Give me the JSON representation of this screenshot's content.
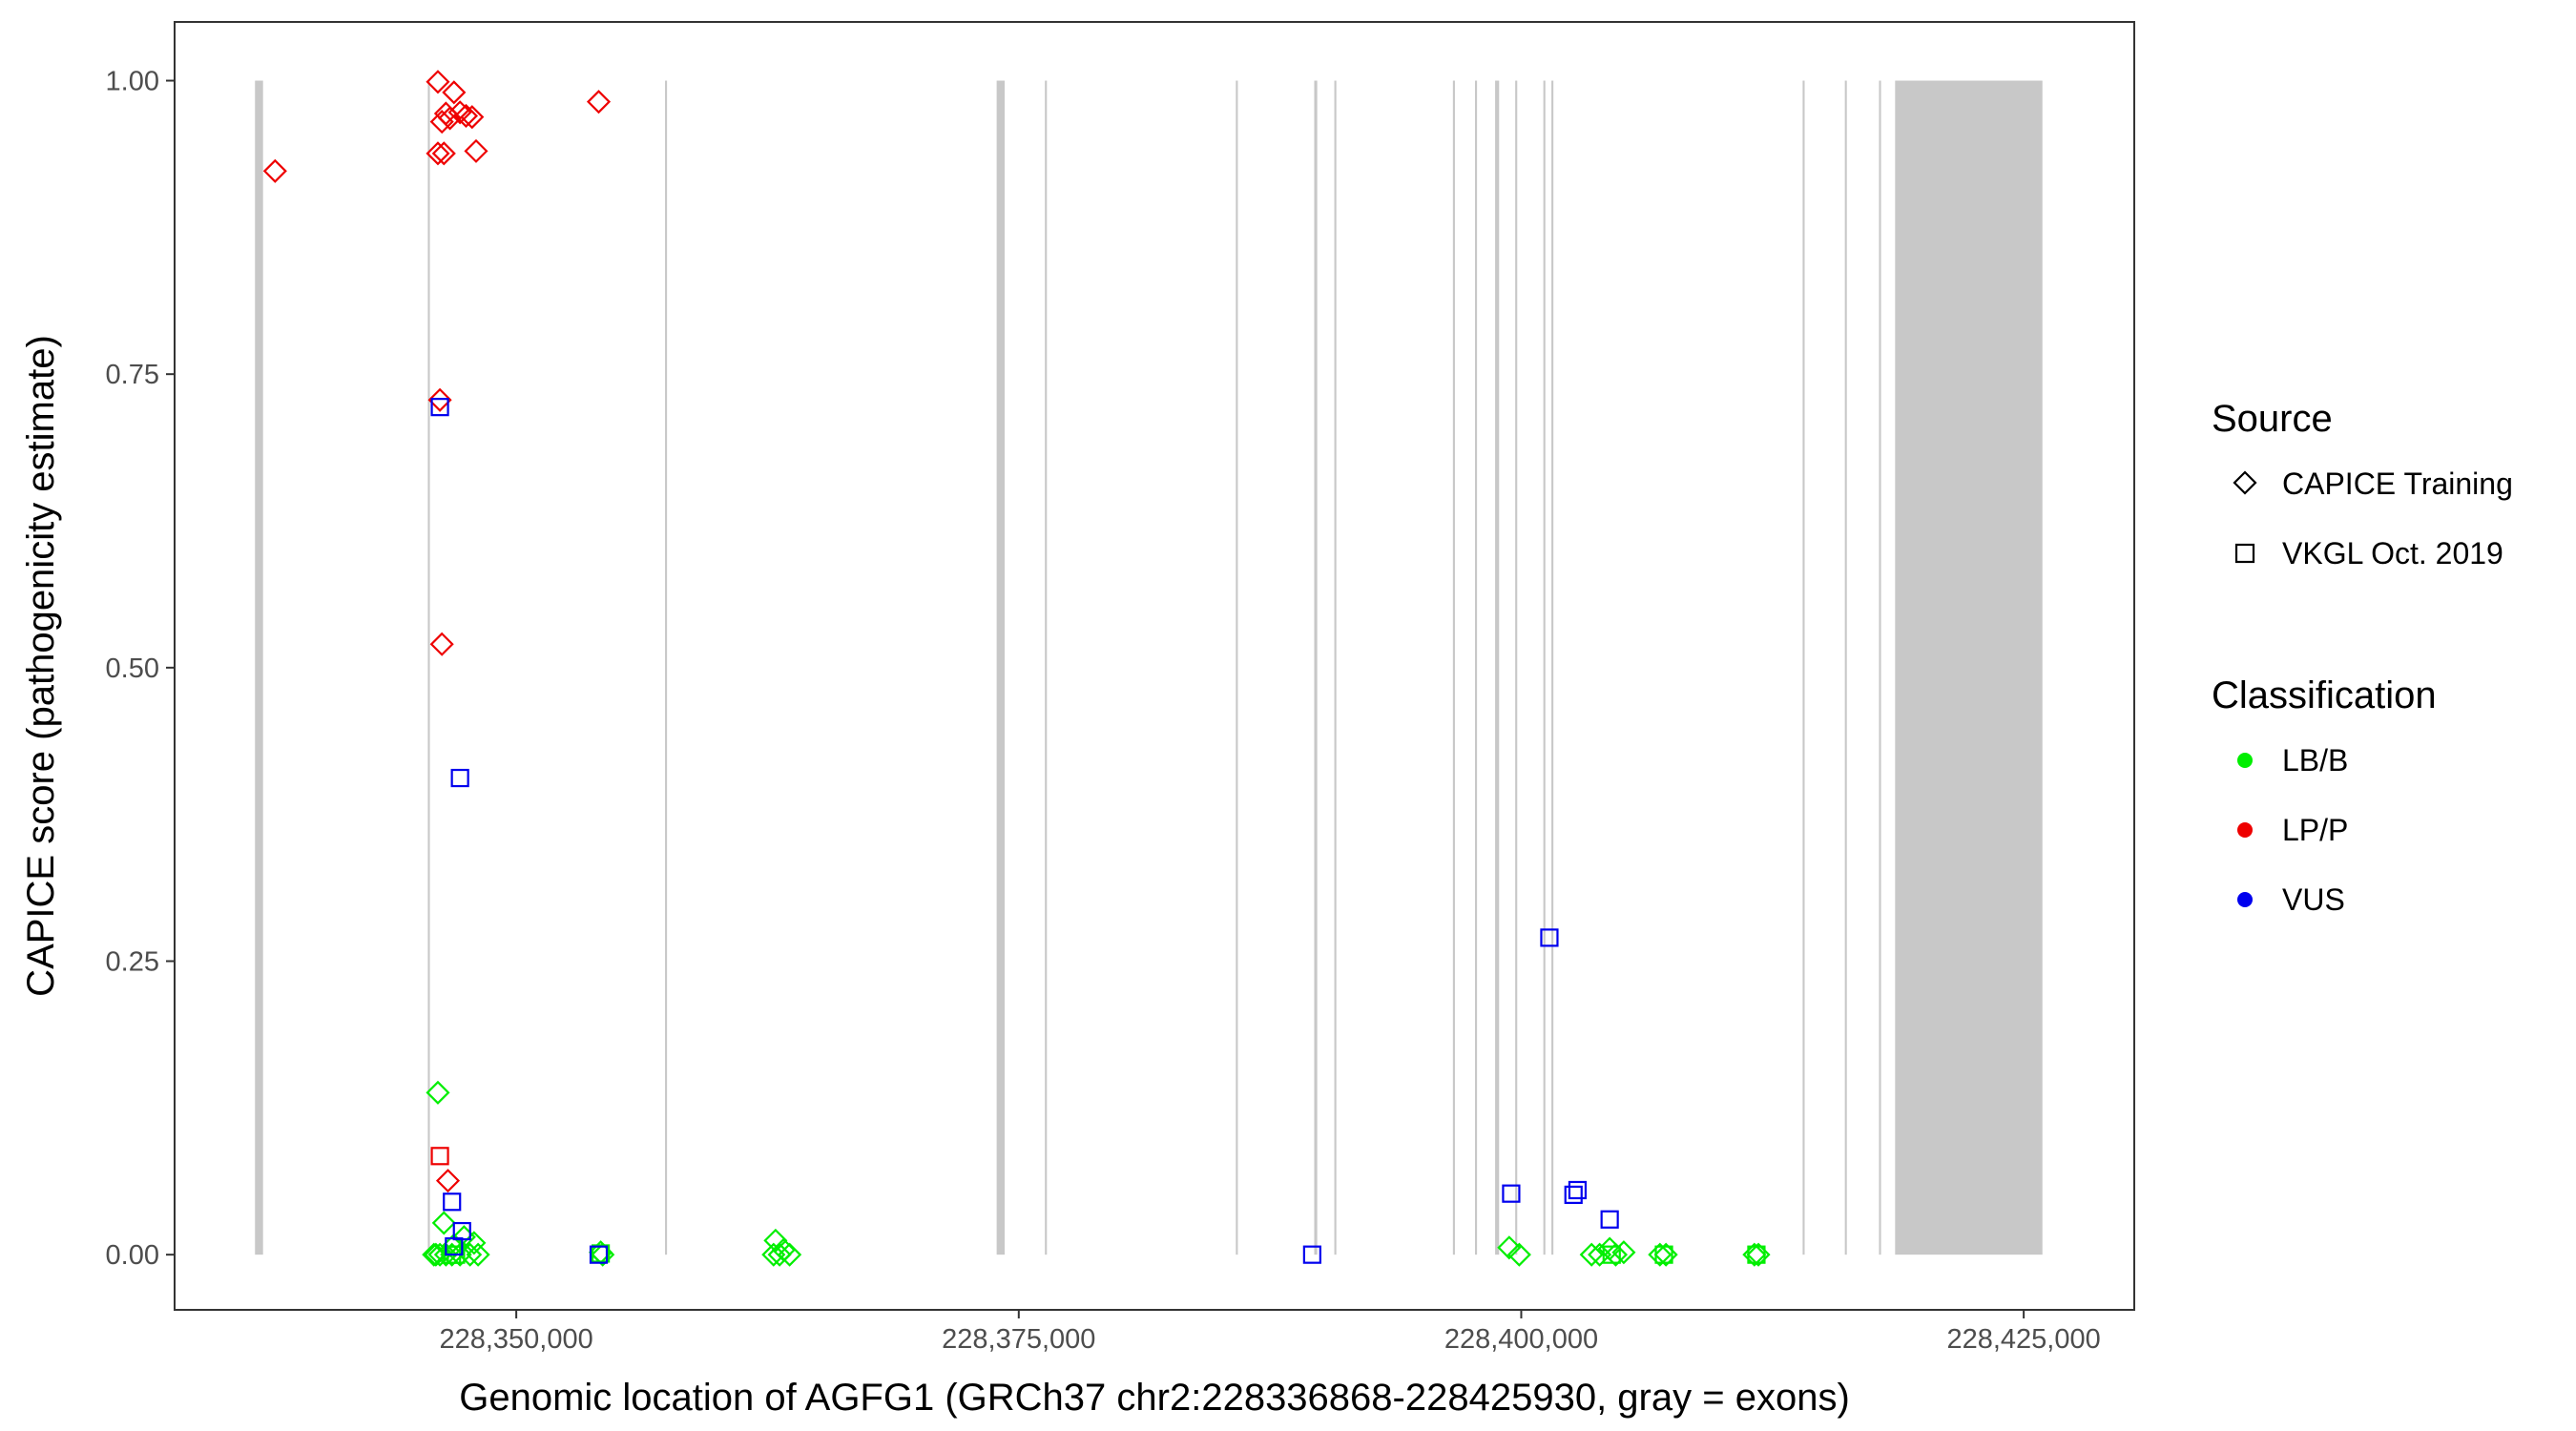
{
  "chart_data": {
    "type": "scatter",
    "title": "",
    "xlabel": "Genomic location of AGFG1 (GRCh37 chr2:228336868-228425930, gray = exons)",
    "ylabel": "CAPICE score (pathogenicity estimate)",
    "xlim": [
      228333000,
      228430500
    ],
    "ylim": [
      -0.047,
      1.05
    ],
    "x_ticks": [
      228350000,
      228375000,
      228400000,
      228425000
    ],
    "x_tick_labels": [
      "228,350,000",
      "228,375,000",
      "228,400,000",
      "228,425,000"
    ],
    "y_ticks": [
      0,
      0.25,
      0.5,
      0.75,
      1.0
    ],
    "y_tick_labels": [
      "0.00",
      "0.25",
      "0.50",
      "0.75",
      "1.00"
    ],
    "grid": false,
    "exons": [
      {
        "start": 228337000,
        "end": 228337400
      },
      {
        "start": 228345600,
        "end": 228345700
      },
      {
        "start": 228357400,
        "end": 228357500
      },
      {
        "start": 228373900,
        "end": 228374300
      },
      {
        "start": 228376300,
        "end": 228376400
      },
      {
        "start": 228385800,
        "end": 228385900
      },
      {
        "start": 228389700,
        "end": 228389850
      },
      {
        "start": 228390700,
        "end": 228390800
      },
      {
        "start": 228396600,
        "end": 228396700
      },
      {
        "start": 228397700,
        "end": 228397800
      },
      {
        "start": 228398700,
        "end": 228398900
      },
      {
        "start": 228399700,
        "end": 228399800
      },
      {
        "start": 228401100,
        "end": 228401200
      },
      {
        "start": 228401500,
        "end": 228401600
      },
      {
        "start": 228414000,
        "end": 228414100
      },
      {
        "start": 228416100,
        "end": 228416200
      },
      {
        "start": 228417800,
        "end": 228417900
      },
      {
        "start": 228418600,
        "end": 228425930
      }
    ],
    "legend": {
      "position": "right",
      "source_title": "Source",
      "source_items": [
        {
          "label": "CAPICE Training",
          "shape": "diamond"
        },
        {
          "label": "VKGL Oct. 2019",
          "shape": "square"
        }
      ],
      "class_title": "Classification",
      "class_items": [
        {
          "label": "LB/B",
          "color": "#00ee00"
        },
        {
          "label": "LP/P",
          "color": "#ee0000"
        },
        {
          "label": "VUS",
          "color": "#0000ee"
        }
      ]
    },
    "colors": {
      "LB/B": "#00ee00",
      "LP/P": "#ee0000",
      "VUS": "#0000ee",
      "exon": "#c8c8c8"
    },
    "series": [
      {
        "source": "CAPICE Training",
        "classification": "LP/P",
        "shape": "diamond",
        "x": [
          228338000,
          228346100,
          228346300,
          228346500,
          228346700,
          228346900,
          228347200,
          228347500,
          228347800,
          228346100,
          228346400,
          228348000,
          228346200,
          228346300,
          228346600,
          228354100
        ],
        "y": [
          0.923,
          0.999,
          0.965,
          0.972,
          0.968,
          0.99,
          0.973,
          0.97,
          0.969,
          0.938,
          0.938,
          0.94,
          0.728,
          0.52,
          0.063,
          0.982
        ]
      },
      {
        "source": "CAPICE Training",
        "classification": "LB/B",
        "shape": "diamond",
        "x": [
          228346100,
          228346400,
          228346900,
          228347400,
          228347900,
          228348100,
          228346000,
          228345900,
          228346200,
          228346500,
          228346800,
          228347200,
          228347700,
          228354200,
          228354300,
          228362800,
          228362900,
          228363100,
          228363300,
          228363600,
          228399400,
          228399900,
          228403500,
          228403900,
          228404400,
          228404700,
          228405100,
          228406900,
          228407200,
          228411600,
          228411800
        ],
        "y": [
          0.138,
          0.027,
          0.008,
          0.015,
          0.01,
          0.0,
          0.0,
          0.0,
          0.0,
          0.0,
          0.0,
          0.0,
          0.0,
          0.002,
          0.0,
          0.0,
          0.012,
          0.0,
          0.004,
          0.0,
          0.006,
          0.0,
          0.0,
          0.0,
          0.005,
          0.0,
          0.002,
          0.0,
          0.0,
          0.0,
          0.0
        ]
      },
      {
        "source": "VKGL Oct. 2019",
        "classification": "LB/B",
        "shape": "square",
        "x": [
          228346800,
          228347000,
          228354200,
          228404500,
          228407100,
          228411700
        ],
        "y": [
          0.0,
          0.0,
          0.001,
          0.0,
          0.0,
          0.0
        ]
      },
      {
        "source": "VKGL Oct. 2019",
        "classification": "LP/P",
        "shape": "square",
        "x": [
          228346200
        ],
        "y": [
          0.084
        ]
      },
      {
        "source": "VKGL Oct. 2019",
        "classification": "VUS",
        "shape": "square",
        "x": [
          228346200,
          228347200,
          228346800,
          228347300,
          228346900,
          228354100,
          228389600,
          228399500,
          228401400,
          228402800,
          228402600,
          228404400
        ],
        "y": [
          0.722,
          0.406,
          0.045,
          0.02,
          0.007,
          0.0,
          0.0,
          0.052,
          0.27,
          0.055,
          0.051,
          0.03
        ]
      }
    ]
  }
}
